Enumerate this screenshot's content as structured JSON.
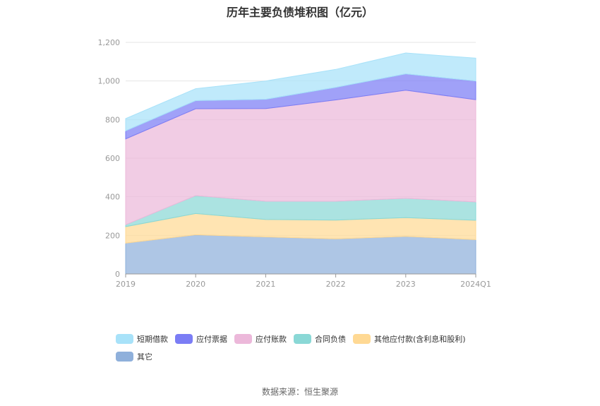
{
  "title": "历年主要负债堆积图（亿元）",
  "source": "数据来源：恒生聚源",
  "colors": {
    "grid": "#e6e6e6",
    "axis": "#999999",
    "tick_text": "#999999"
  },
  "chart_data": {
    "type": "area",
    "stacked": true,
    "categories": [
      "2019",
      "2020",
      "2021",
      "2022",
      "2023",
      "2024Q1"
    ],
    "ylim": [
      0,
      1200
    ],
    "yticks": [
      "0",
      "200",
      "400",
      "600",
      "800",
      "1,000",
      "1,200"
    ],
    "ytick_values": [
      0,
      200,
      400,
      600,
      800,
      1000,
      1200
    ],
    "grid": true,
    "legend_position": "bottom",
    "series": [
      {
        "name": "其它",
        "color": "#8fb0db",
        "values": [
          160,
          203,
          192,
          182,
          195,
          178
        ]
      },
      {
        "name": "其他应付款(含利息和股利)",
        "color": "#ffd994",
        "values": [
          85,
          110,
          90,
          97,
          97,
          100
        ]
      },
      {
        "name": "合同负债",
        "color": "#8ad8d6",
        "values": [
          10,
          93,
          95,
          98,
          100,
          95
        ]
      },
      {
        "name": "应付账款",
        "color": "#ecb8da",
        "values": [
          445,
          450,
          480,
          525,
          560,
          530
        ]
      },
      {
        "name": "应付票据",
        "color": "#7b7df5",
        "values": [
          42,
          42,
          48,
          65,
          85,
          97
        ]
      },
      {
        "name": "短期借款",
        "color": "#a8e2f9",
        "values": [
          63,
          62,
          95,
          93,
          108,
          118
        ]
      }
    ]
  },
  "legend": [
    {
      "name": "短期借款",
      "color": "#a8e2f9"
    },
    {
      "name": "应付票据",
      "color": "#7b7df5"
    },
    {
      "name": "应付账款",
      "color": "#ecb8da"
    },
    {
      "name": "合同负债",
      "color": "#8ad8d6"
    },
    {
      "name": "其他应付款(含利息和股利)",
      "color": "#ffd994"
    },
    {
      "name": "其它",
      "color": "#8fb0db"
    }
  ]
}
